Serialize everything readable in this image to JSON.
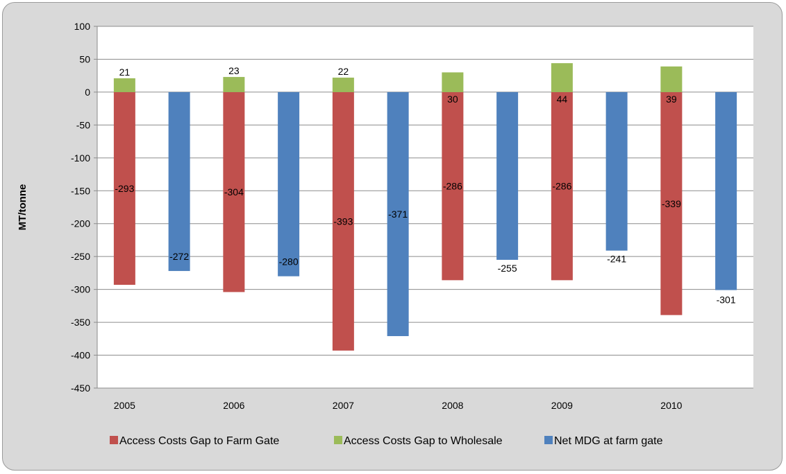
{
  "chart_data": {
    "type": "bar",
    "title": "",
    "xlabel": "",
    "ylabel": "MT/tonne",
    "ylim": [
      -450,
      100
    ],
    "ytick_step": 50,
    "grid": true,
    "legend_position": "bottom",
    "categories": [
      "2005",
      "2006",
      "2007",
      "2008",
      "2009",
      "2010"
    ],
    "series": [
      {
        "name": "Access Costs Gap to Farm Gate",
        "color": "#c0504d",
        "values": [
          -293,
          -304,
          -393,
          -286,
          -286,
          -339
        ],
        "stack": "a"
      },
      {
        "name": "Access Costs Gap to Wholesale",
        "color": "#9bbb59",
        "values": [
          21,
          23,
          22,
          30,
          44,
          39
        ],
        "stack": "a"
      },
      {
        "name": "Net MDG at farm gate",
        "color": "#4f81bd",
        "values": [
          -272,
          -280,
          -371,
          -255,
          -241,
          -301
        ],
        "stack": "b"
      }
    ],
    "legend_order": [
      0,
      1,
      2
    ]
  }
}
